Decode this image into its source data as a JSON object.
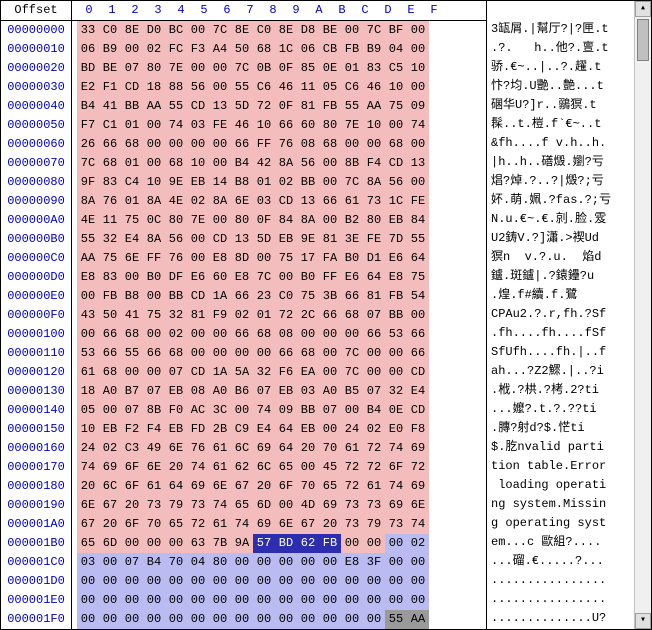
{
  "header": {
    "offset_label": "Offset",
    "cols": [
      "0",
      "1",
      "2",
      "3",
      "4",
      "5",
      "6",
      "7",
      "8",
      "9",
      "A",
      "B",
      "C",
      "D",
      "E",
      "F"
    ]
  },
  "rows": [
    {
      "off": "00000000",
      "hex": [
        "33",
        "C0",
        "8E",
        "D0",
        "BC",
        "00",
        "7C",
        "8E",
        "C0",
        "8E",
        "D8",
        "BE",
        "00",
        "7C",
        "BF",
        "00"
      ],
      "bg": "pink",
      "ascii": "3缻屑.|幫厅?|?匣.t"
    },
    {
      "off": "00000010",
      "hex": [
        "06",
        "B9",
        "00",
        "02",
        "FC",
        "F3",
        "A4",
        "50",
        "68",
        "1C",
        "06",
        "CB",
        "FB",
        "B9",
        "04",
        "00"
      ],
      "bg": "pink",
      "ascii": ".?.   h..他?.亶.t"
    },
    {
      "off": "00000020",
      "hex": [
        "BD",
        "BE",
        "07",
        "80",
        "7E",
        "00",
        "00",
        "7C",
        "0B",
        "0F",
        "85",
        "0E",
        "01",
        "83",
        "C5",
        "10"
      ],
      "bg": "pink",
      "ascii": "骄.€~..|..?.趯.t"
    },
    {
      "off": "00000030",
      "hex": [
        "E2",
        "F1",
        "CD",
        "18",
        "88",
        "56",
        "00",
        "55",
        "C6",
        "46",
        "11",
        "05",
        "C6",
        "46",
        "10",
        "00"
      ],
      "bg": "pink",
      "ascii": "忭?均.U艷..艶...t"
    },
    {
      "off": "00000040",
      "hex": [
        "B4",
        "41",
        "BB",
        "AA",
        "55",
        "CD",
        "13",
        "5D",
        "72",
        "0F",
        "81",
        "FB",
        "55",
        "AA",
        "75",
        "09"
      ],
      "bg": "pink",
      "ascii": "碅华U?]r..鶸猽.t"
    },
    {
      "off": "00000050",
      "hex": [
        "F7",
        "C1",
        "01",
        "00",
        "74",
        "03",
        "FE",
        "46",
        "10",
        "66",
        "60",
        "80",
        "7E",
        "10",
        "00",
        "74"
      ],
      "bg": "pink",
      "ascii": "髹..t.榿.f`€~..t"
    },
    {
      "off": "00000060",
      "hex": [
        "26",
        "66",
        "68",
        "00",
        "00",
        "00",
        "00",
        "66",
        "FF",
        "76",
        "08",
        "68",
        "00",
        "00",
        "68",
        "00"
      ],
      "bg": "pink",
      "ascii": "&fh....f v.h..h."
    },
    {
      "off": "00000070",
      "hex": [
        "7C",
        "68",
        "01",
        "00",
        "68",
        "10",
        "00",
        "B4",
        "42",
        "8A",
        "56",
        "00",
        "8B",
        "F4",
        "CD",
        "13"
      ],
      "bg": "pink",
      "ascii": "|h..h..磰燬.嬼?亏"
    },
    {
      "off": "00000080",
      "hex": [
        "9F",
        "83",
        "C4",
        "10",
        "9E",
        "EB",
        "14",
        "B8",
        "01",
        "02",
        "BB",
        "00",
        "7C",
        "8A",
        "56",
        "00"
      ],
      "bg": "pink",
      "ascii": "焻?焯.?..?|燬?;亏"
    },
    {
      "off": "00000090",
      "hex": [
        "8A",
        "76",
        "01",
        "8A",
        "4E",
        "02",
        "8A",
        "6E",
        "03",
        "CD",
        "13",
        "66",
        "61",
        "73",
        "1C",
        "FE"
      ],
      "bg": "pink",
      "ascii": "妚.萌.姵.?fas.?;亏"
    },
    {
      "off": "000000A0",
      "hex": [
        "4E",
        "11",
        "75",
        "0C",
        "80",
        "7E",
        "00",
        "80",
        "0F",
        "84",
        "8A",
        "00",
        "B2",
        "80",
        "EB",
        "84"
      ],
      "bg": "pink",
      "ascii": "N.u.€~.€.剠.脸.雭"
    },
    {
      "off": "000000B0",
      "hex": [
        "55",
        "32",
        "E4",
        "8A",
        "56",
        "00",
        "CD",
        "13",
        "5D",
        "EB",
        "9E",
        "81",
        "3E",
        "FE",
        "7D",
        "55"
      ],
      "bg": "pink",
      "ascii": "U2鋳V.?]瀟.>褉Ud"
    },
    {
      "off": "000000C0",
      "hex": [
        "AA",
        "75",
        "6E",
        "FF",
        "76",
        "00",
        "E8",
        "8D",
        "00",
        "75",
        "17",
        "FA",
        "B0",
        "D1",
        "E6",
        "64"
      ],
      "bg": "pink",
      "ascii": "猽n  v.?.u.  焰d"
    },
    {
      "off": "000000D0",
      "hex": [
        "E8",
        "83",
        "00",
        "B0",
        "DF",
        "E6",
        "60",
        "E8",
        "7C",
        "00",
        "B0",
        "FF",
        "E6",
        "64",
        "E8",
        "75"
      ],
      "bg": "pink",
      "ascii": "鑪.斑鑪|.?鎱鑸?u"
    },
    {
      "off": "000000E0",
      "hex": [
        "00",
        "FB",
        "B8",
        "00",
        "BB",
        "CD",
        "1A",
        "66",
        "23",
        "C0",
        "75",
        "3B",
        "66",
        "81",
        "FB",
        "54"
      ],
      "bg": "pink",
      "ascii": ".煌.f#續.f.鷺"
    },
    {
      "off": "000000F0",
      "hex": [
        "43",
        "50",
        "41",
        "75",
        "32",
        "81",
        "F9",
        "02",
        "01",
        "72",
        "2C",
        "66",
        "68",
        "07",
        "BB",
        "00"
      ],
      "bg": "pink",
      "ascii": "CPAu2.?.r,fh.?Sf"
    },
    {
      "off": "00000100",
      "hex": [
        "00",
        "66",
        "68",
        "00",
        "02",
        "00",
        "00",
        "66",
        "68",
        "08",
        "00",
        "00",
        "00",
        "66",
        "53",
        "66"
      ],
      "bg": "pink",
      "ascii": ".fh....fh....fSf"
    },
    {
      "off": "00000110",
      "hex": [
        "53",
        "66",
        "55",
        "66",
        "68",
        "00",
        "00",
        "00",
        "00",
        "66",
        "68",
        "00",
        "7C",
        "00",
        "00",
        "66"
      ],
      "bg": "pink",
      "ascii": "SfUfh....fh.|..f"
    },
    {
      "off": "00000120",
      "hex": [
        "61",
        "68",
        "00",
        "00",
        "07",
        "CD",
        "1A",
        "5A",
        "32",
        "F6",
        "EA",
        "00",
        "7C",
        "00",
        "00",
        "CD"
      ],
      "bg": "pink",
      "ascii": "ah...?Z2鰥.|..?i"
    },
    {
      "off": "00000130",
      "hex": [
        "18",
        "A0",
        "B7",
        "07",
        "EB",
        "08",
        "A0",
        "B6",
        "07",
        "EB",
        "03",
        "A0",
        "B5",
        "07",
        "32",
        "E4"
      ],
      "bg": "pink",
      "ascii": ".栰.?栱.?栲.2?ti"
    },
    {
      "off": "00000140",
      "hex": [
        "05",
        "00",
        "07",
        "8B",
        "F0",
        "AC",
        "3C",
        "00",
        "74",
        "09",
        "BB",
        "07",
        "00",
        "B4",
        "0E",
        "CD"
      ],
      "bg": "pink",
      "ascii": "...嬤?.t.?.??ti"
    },
    {
      "off": "00000150",
      "hex": [
        "10",
        "EB",
        "F2",
        "F4",
        "EB",
        "FD",
        "2B",
        "C9",
        "E4",
        "64",
        "EB",
        "00",
        "24",
        "02",
        "E0",
        "F8"
      ],
      "bg": "pink",
      "ascii": ".膞?射d?$.恾ti"
    },
    {
      "off": "00000160",
      "hex": [
        "24",
        "02",
        "C3",
        "49",
        "6E",
        "76",
        "61",
        "6C",
        "69",
        "64",
        "20",
        "70",
        "61",
        "72",
        "74",
        "69"
      ],
      "bg": "pink",
      "ascii": "$.肐nvalid parti"
    },
    {
      "off": "00000170",
      "hex": [
        "74",
        "69",
        "6F",
        "6E",
        "20",
        "74",
        "61",
        "62",
        "6C",
        "65",
        "00",
        "45",
        "72",
        "72",
        "6F",
        "72"
      ],
      "bg": "pink",
      "ascii": "tion table.Error"
    },
    {
      "off": "00000180",
      "hex": [
        "20",
        "6C",
        "6F",
        "61",
        "64",
        "69",
        "6E",
        "67",
        "20",
        "6F",
        "70",
        "65",
        "72",
        "61",
        "74",
        "69"
      ],
      "bg": "pink",
      "ascii": " loading operati"
    },
    {
      "off": "00000190",
      "hex": [
        "6E",
        "67",
        "20",
        "73",
        "79",
        "73",
        "74",
        "65",
        "6D",
        "00",
        "4D",
        "69",
        "73",
        "73",
        "69",
        "6E"
      ],
      "bg": "pink",
      "ascii": "ng system.Missin"
    },
    {
      "off": "000001A0",
      "hex": [
        "67",
        "20",
        "6F",
        "70",
        "65",
        "72",
        "61",
        "74",
        "69",
        "6E",
        "67",
        "20",
        "73",
        "79",
        "73",
        "74"
      ],
      "bg": "pink",
      "ascii": "g operating syst"
    },
    {
      "off": "000001B0",
      "hex": [
        "65",
        "6D",
        "00",
        "00",
        "00",
        "63",
        "7B",
        "9A",
        "57",
        "BD",
        "62",
        "FB",
        "00",
        "00",
        "00",
        "02"
      ],
      "bg": "mix",
      "sel": [
        8,
        9,
        10,
        11
      ],
      "blue_from": 14,
      "ascii": "em...c 歐組?...."
    },
    {
      "off": "000001C0",
      "hex": [
        "03",
        "00",
        "07",
        "B4",
        "70",
        "04",
        "80",
        "00",
        "00",
        "00",
        "00",
        "00",
        "E8",
        "3F",
        "00",
        "00"
      ],
      "bg": "blue",
      "ascii": "...磂.€.....?..."
    },
    {
      "off": "000001D0",
      "hex": [
        "00",
        "00",
        "00",
        "00",
        "00",
        "00",
        "00",
        "00",
        "00",
        "00",
        "00",
        "00",
        "00",
        "00",
        "00",
        "00"
      ],
      "bg": "blue",
      "ascii": "................"
    },
    {
      "off": "000001E0",
      "hex": [
        "00",
        "00",
        "00",
        "00",
        "00",
        "00",
        "00",
        "00",
        "00",
        "00",
        "00",
        "00",
        "00",
        "00",
        "00",
        "00"
      ],
      "bg": "blue",
      "ascii": "................"
    },
    {
      "off": "000001F0",
      "hex": [
        "00",
        "00",
        "00",
        "00",
        "00",
        "00",
        "00",
        "00",
        "00",
        "00",
        "00",
        "00",
        "00",
        "00",
        "55",
        "AA"
      ],
      "bg": "blue",
      "hl": [
        14,
        15
      ],
      "ascii": "..............U?"
    }
  ],
  "colors": {
    "pink": "#f4bdbd",
    "blue": "#b9bbf1",
    "offset_text": "#0000ce",
    "hdr_text": "#0000ce",
    "sel_bg": "#2d2db0",
    "sel_fg": "#ffffff",
    "hl_bg": "#9a9a9a"
  }
}
